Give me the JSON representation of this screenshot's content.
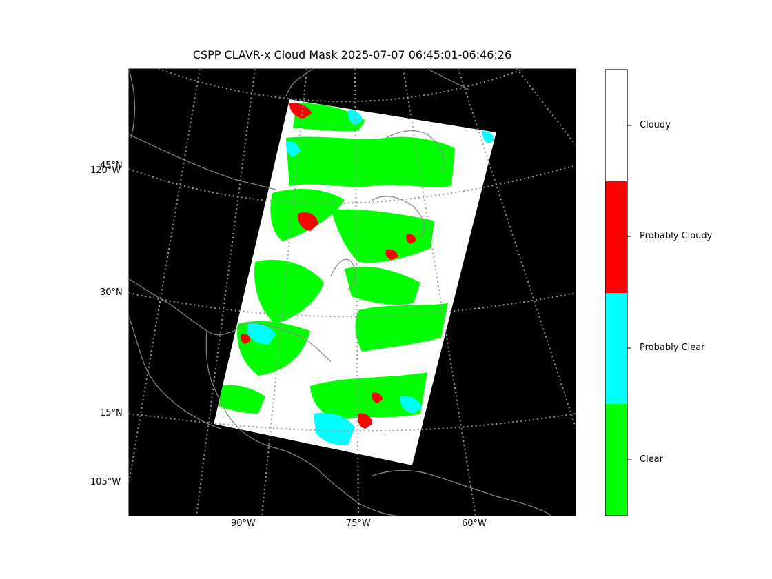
{
  "title": "CSPP CLAVR-x Cloud Mask 2025-07-07 06:45:01-06:46:26",
  "map": {
    "background_color": "#000000",
    "coastline_color": "#888888",
    "graticule_color": "#9a9a9a",
    "lat_labels": [
      "45°N",
      "30°N",
      "15°N"
    ],
    "lon_labels_bottom": [
      "90°W",
      "75°W",
      "60°W"
    ],
    "lon_labels_left": [
      "120°W",
      "105°W"
    ]
  },
  "colorbar": {
    "categories": [
      {
        "name": "Clear",
        "color": "#00ff00"
      },
      {
        "name": "Probably Clear",
        "color": "#00ffff"
      },
      {
        "name": "Probably Cloudy",
        "color": "#ff0000"
      },
      {
        "name": "Cloudy",
        "color": "#ffffff"
      }
    ]
  }
}
